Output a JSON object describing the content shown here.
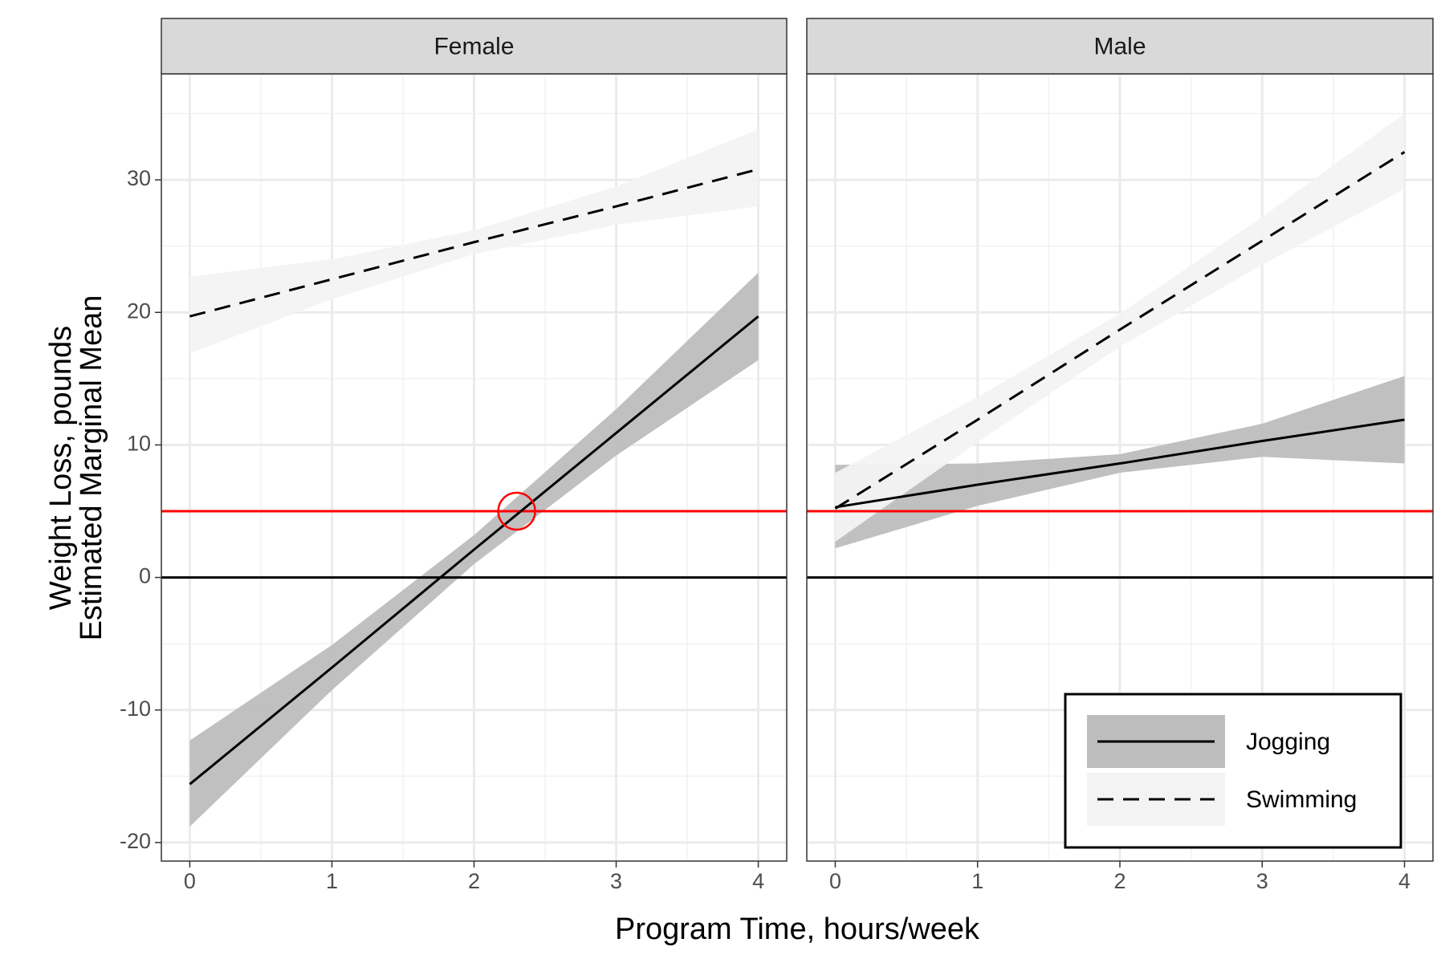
{
  "chart_data": {
    "type": "line",
    "xlabel": "Program Time, hours/week",
    "ylabel": [
      "Weight Loss, pounds",
      "Estimated Marginal Mean"
    ],
    "x": [
      0,
      1,
      2,
      3,
      4
    ],
    "xlim": [
      -0.2,
      4.2
    ],
    "ylim": [
      -21.4,
      38
    ],
    "xticks": [
      0,
      1,
      2,
      3,
      4
    ],
    "yticks": [
      -20,
      -10,
      0,
      10,
      20,
      30
    ],
    "x_minor_ticks": [
      0.5,
      1.5,
      2.5,
      3.5
    ],
    "y_minor_ticks": [
      -15,
      -5,
      5,
      15,
      25,
      35
    ],
    "grid": true,
    "legend_position": "bottom-right",
    "series": [
      {
        "name": "Jogging",
        "color": "#000000",
        "fill": "#bdbdbd",
        "linetype": "solid"
      },
      {
        "name": "Swimming",
        "color": "#000000",
        "fill": "#f3f3f3",
        "linetype": "dashed"
      }
    ],
    "hlines": [
      {
        "value": 0,
        "color": "#000000"
      },
      {
        "value": 5,
        "color": "#ff0000"
      }
    ],
    "facets": [
      {
        "label": "Female",
        "highlight": {
          "x": 2.3,
          "y": 5,
          "color": "#ff0000"
        },
        "series": [
          {
            "values": [
              -15.6,
              -6.8,
              2.1,
              10.9,
              19.7
            ],
            "lower": [
              -18.8,
              -8.5,
              1.0,
              9.2,
              16.4
            ],
            "upper": [
              -12.3,
              -5.1,
              3.2,
              12.7,
              23.0
            ]
          },
          {
            "values": [
              19.7,
              22.5,
              25.3,
              28.0,
              30.8
            ],
            "lower": [
              16.9,
              21.0,
              24.4,
              26.6,
              28.0
            ],
            "upper": [
              22.7,
              24.0,
              26.2,
              29.5,
              33.8
            ]
          }
        ]
      },
      {
        "label": "Male",
        "series": [
          {
            "values": [
              5.3,
              7.0,
              8.6,
              10.3,
              11.9
            ],
            "lower": [
              2.2,
              5.4,
              7.9,
              9.1,
              8.6
            ],
            "upper": [
              8.5,
              8.6,
              9.3,
              11.6,
              15.2
            ]
          },
          {
            "values": [
              5.2,
              11.9,
              18.7,
              25.4,
              32.1
            ],
            "lower": [
              2.7,
              10.2,
              17.4,
              23.6,
              29.3
            ],
            "upper": [
              7.9,
              13.6,
              19.9,
              27.2,
              35.0
            ]
          }
        ]
      }
    ]
  }
}
